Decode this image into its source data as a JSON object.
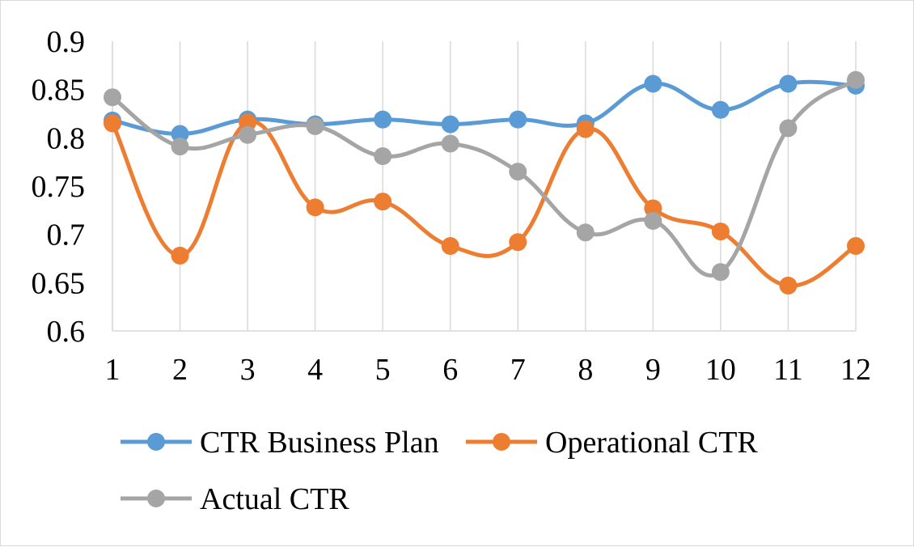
{
  "chart_data": {
    "type": "line",
    "smooth": true,
    "title": "",
    "xlabel": "",
    "ylabel": "",
    "x": [
      1,
      2,
      3,
      4,
      5,
      6,
      7,
      8,
      9,
      10,
      11,
      12
    ],
    "x_tick_labels": [
      "1",
      "2",
      "3",
      "4",
      "5",
      "6",
      "7",
      "8",
      "9",
      "10",
      "11",
      "12"
    ],
    "ylim": [
      0.6,
      0.9
    ],
    "y_ticks": [
      0.6,
      0.65,
      0.7,
      0.75,
      0.8,
      0.85,
      0.9
    ],
    "y_tick_labels": [
      "0.6",
      "0.65",
      "0.7",
      "0.75",
      "0.8",
      "0.85",
      "0.9"
    ],
    "grid": "vertical",
    "legend_position": "bottom",
    "series": [
      {
        "name": "CTR Business Plan",
        "color": "#5B9BD5",
        "values": [
          0.818,
          0.804,
          0.819,
          0.814,
          0.819,
          0.814,
          0.819,
          0.815,
          0.856,
          0.829,
          0.856,
          0.854
        ]
      },
      {
        "name": "Operational CTR",
        "color": "#ED7D31",
        "values": [
          0.815,
          0.678,
          0.816,
          0.728,
          0.734,
          0.688,
          0.692,
          0.809,
          0.727,
          0.703,
          0.647,
          0.688
        ]
      },
      {
        "name": "Actual CTR",
        "color": "#A5A5A5",
        "values": [
          0.842,
          0.791,
          0.803,
          0.812,
          0.781,
          0.794,
          0.765,
          0.702,
          0.714,
          0.661,
          0.81,
          0.86
        ]
      }
    ]
  }
}
